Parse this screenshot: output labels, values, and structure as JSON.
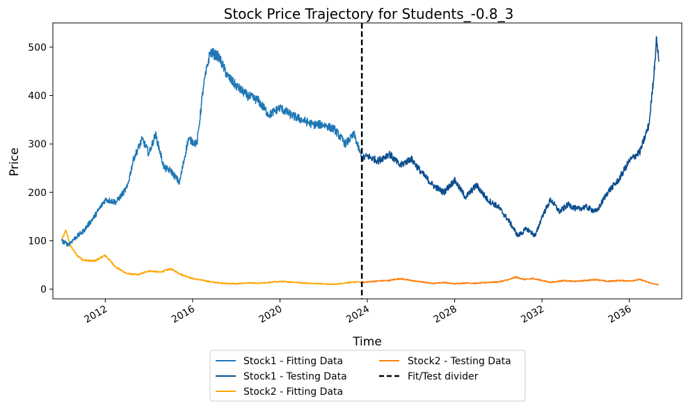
{
  "chart_data": {
    "type": "line",
    "title": "Stock Price Trajectory for Students_-0.8_3",
    "xlabel": "Time",
    "ylabel": "Price",
    "xlim": [
      2009.6,
      2038.4
    ],
    "ylim": [
      -20,
      550
    ],
    "x_ticks": [
      2012,
      2016,
      2020,
      2024,
      2028,
      2032,
      2036
    ],
    "x_tick_labels": [
      "2012",
      "2016",
      "2020",
      "2024",
      "2028",
      "2032",
      "2036"
    ],
    "y_ticks": [
      0,
      100,
      200,
      300,
      400,
      500
    ],
    "y_tick_labels": [
      "0",
      "100",
      "200",
      "300",
      "400",
      "500"
    ],
    "divider_x": 2023.75,
    "legend_position": "below",
    "series": [
      {
        "name": "Stock1 - Fitting Data",
        "color": "#1f77b4",
        "style": "solid",
        "x": [
          2010.0,
          2010.3,
          2010.6,
          2011.0,
          2011.5,
          2012.0,
          2012.5,
          2013.0,
          2013.3,
          2013.7,
          2014.0,
          2014.3,
          2014.7,
          2015.0,
          2015.4,
          2015.8,
          2016.2,
          2016.5,
          2016.8,
          2017.2,
          2017.6,
          2018.0,
          2018.5,
          2019.0,
          2019.5,
          2020.0,
          2020.5,
          2021.0,
          2021.5,
          2022.0,
          2022.5,
          2023.0,
          2023.4,
          2023.75
        ],
        "y": [
          100,
          92,
          105,
          120,
          150,
          185,
          180,
          210,
          270,
          310,
          280,
          320,
          250,
          245,
          220,
          310,
          300,
          420,
          490,
          480,
          440,
          420,
          400,
          390,
          360,
          375,
          360,
          350,
          340,
          340,
          330,
          300,
          320,
          270
        ]
      },
      {
        "name": "Stock1 - Testing Data",
        "color": "#0b4f8f",
        "style": "solid",
        "x": [
          2023.75,
          2024.0,
          2024.5,
          2025.0,
          2025.5,
          2026.0,
          2026.5,
          2027.0,
          2027.5,
          2028.0,
          2028.5,
          2029.0,
          2029.5,
          2030.0,
          2030.5,
          2030.9,
          2031.3,
          2031.7,
          2032.0,
          2032.4,
          2032.8,
          2033.2,
          2033.6,
          2034.0,
          2034.5,
          2035.0,
          2035.5,
          2036.0,
          2036.5,
          2036.9,
          2037.1,
          2037.25,
          2037.35
        ],
        "y": [
          270,
          275,
          265,
          280,
          255,
          270,
          240,
          215,
          200,
          225,
          190,
          215,
          185,
          170,
          140,
          110,
          125,
          110,
          150,
          185,
          160,
          175,
          165,
          170,
          160,
          200,
          225,
          265,
          285,
          340,
          430,
          520,
          470
        ]
      },
      {
        "name": "Stock2 - Fitting Data",
        "color": "#ffa500",
        "style": "solid",
        "x": [
          2010.0,
          2010.2,
          2010.4,
          2010.7,
          2011.0,
          2011.5,
          2012.0,
          2012.5,
          2013.0,
          2013.5,
          2014.0,
          2014.5,
          2015.0,
          2015.5,
          2016.0,
          2016.5,
          2017.0,
          2017.5,
          2018.0,
          2018.5,
          2019.0,
          2019.5,
          2020.0,
          2020.5,
          2021.0,
          2021.5,
          2022.0,
          2022.5,
          2023.0,
          2023.5,
          2023.75
        ],
        "y": [
          100,
          122,
          90,
          70,
          60,
          58,
          70,
          45,
          32,
          30,
          38,
          35,
          42,
          30,
          22,
          18,
          14,
          12,
          11,
          13,
          12,
          14,
          16,
          15,
          13,
          12,
          11,
          10,
          13,
          15,
          14
        ]
      },
      {
        "name": "Stock2 - Testing Data",
        "color": "#ff7f0e",
        "style": "solid",
        "x": [
          2023.75,
          2024.5,
          2025.0,
          2025.5,
          2026.0,
          2026.5,
          2027.0,
          2027.5,
          2028.0,
          2028.5,
          2029.0,
          2029.5,
          2030.0,
          2030.5,
          2030.8,
          2031.2,
          2031.6,
          2032.0,
          2032.4,
          2033.0,
          2033.5,
          2034.0,
          2034.5,
          2035.0,
          2035.5,
          2036.0,
          2036.5,
          2037.0,
          2037.35
        ],
        "y": [
          14,
          17,
          18,
          22,
          18,
          15,
          12,
          14,
          11,
          13,
          12,
          14,
          15,
          20,
          25,
          20,
          22,
          18,
          14,
          18,
          16,
          18,
          20,
          16,
          18,
          17,
          20,
          12,
          9
        ]
      }
    ],
    "divider": {
      "name": "Fit/Test divider",
      "color": "#000000",
      "style": "dashed"
    }
  }
}
